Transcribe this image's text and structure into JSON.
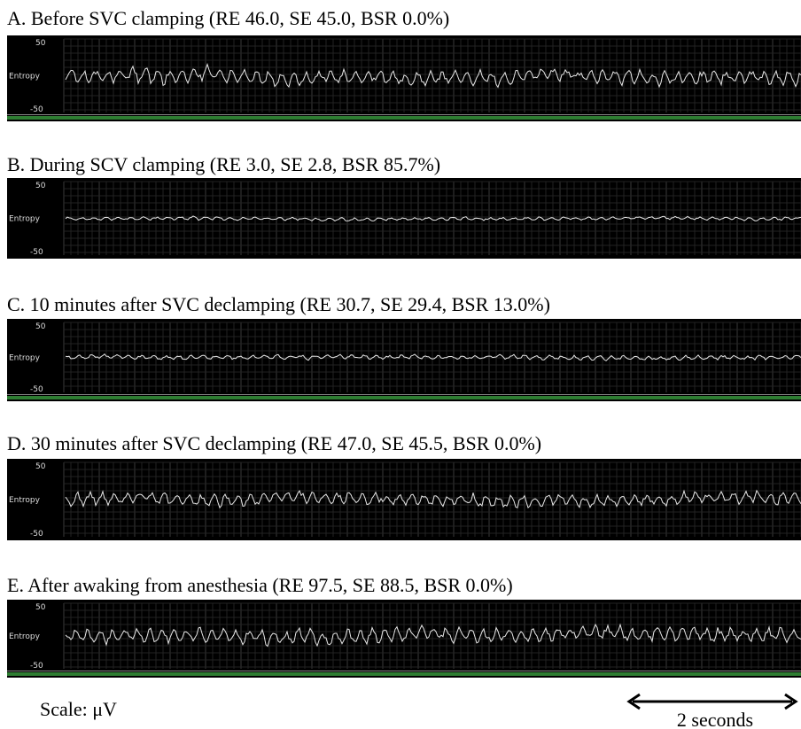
{
  "panels": [
    {
      "title": "A. Before SVC clamping (RE 46.0, SE 45.0, BSR 0.0%)",
      "y_top": "50",
      "y_label": "Entropy",
      "y_bottom": "-50"
    },
    {
      "title": "B. During SCV clamping (RE 3.0, SE 2.8, BSR 85.7%)",
      "y_top": "50",
      "y_label": "Entropy",
      "y_bottom": "-50"
    },
    {
      "title": "C. 10 minutes after SVC declamping (RE 30.7, SE 29.4, BSR 13.0%)",
      "y_top": "50",
      "y_label": "Entropy",
      "y_bottom": "-50"
    },
    {
      "title": "D. 30 minutes after SVC declamping (RE 47.0, SE 45.5, BSR 0.0%)",
      "y_top": "50",
      "y_label": "Entropy",
      "y_bottom": "-50"
    },
    {
      "title": "E. After awaking from anesthesia (RE 97.5, SE 88.5, BSR 0.0%)",
      "y_top": "50",
      "y_label": "Entropy",
      "y_bottom": "-50"
    }
  ],
  "scale": "Scale: μV",
  "time_bar": "2 seconds"
}
